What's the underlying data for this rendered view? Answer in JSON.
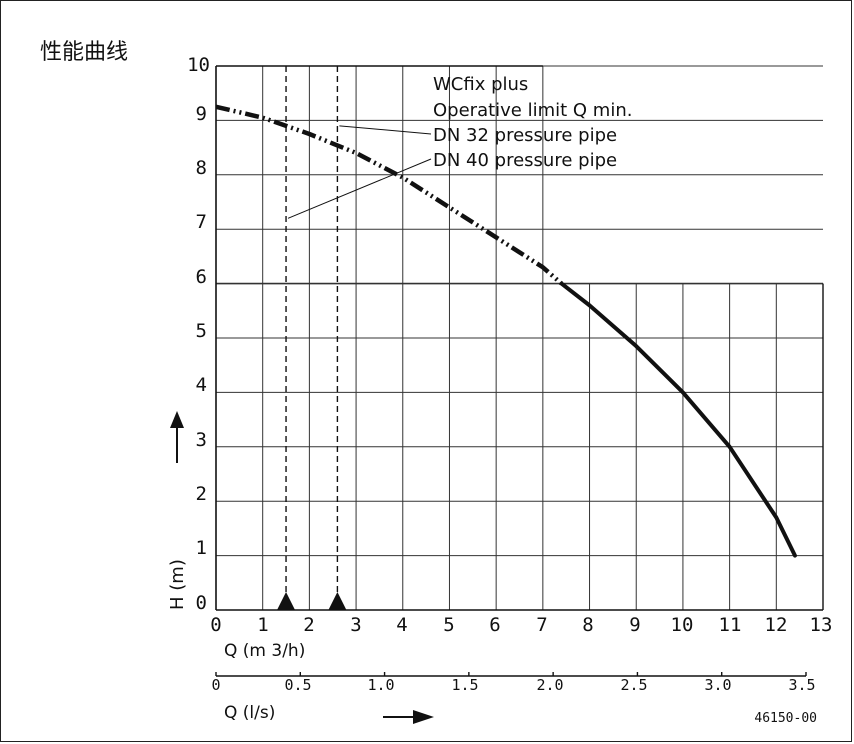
{
  "title": "性能曲线",
  "chart_data": {
    "type": "line",
    "title": "性能曲线",
    "ylabel": "H (m)",
    "xlabel": "Q (m 3/h)",
    "xlabel2": "Q (l/s)",
    "xlim": [
      0,
      13
    ],
    "ylim": [
      0,
      10
    ],
    "x2lim": [
      0,
      3.5
    ],
    "grid": true,
    "xticks": [
      "0",
      "1",
      "2",
      "3",
      "4",
      "5",
      "6",
      "7",
      "8",
      "9",
      "10",
      "11",
      "12",
      "13"
    ],
    "yticks": [
      "0",
      "1",
      "2",
      "3",
      "4",
      "5",
      "6",
      "7",
      "8",
      "9",
      "10"
    ],
    "x2ticks": [
      "0",
      "0.5",
      "1.0",
      "1.5",
      "2.0",
      "2.5",
      "3.0",
      "3.5"
    ],
    "series": [
      {
        "name": "WCfix plus",
        "x": [
          0,
          1,
          2,
          3,
          4,
          5,
          6,
          7,
          7.4,
          8,
          9,
          10,
          11,
          12,
          12.4
        ],
        "y": [
          9.25,
          9.05,
          8.75,
          8.4,
          7.95,
          7.4,
          6.85,
          6.3,
          6.0,
          5.6,
          4.85,
          4.0,
          3.0,
          1.7,
          1.0
        ],
        "dashed_until_x": 7.4
      }
    ],
    "markers": [
      {
        "name": "DN 32 pressure pipe",
        "x": 2.6
      },
      {
        "name": "DN 40 pressure pipe",
        "x": 1.5
      }
    ],
    "annotations": [
      "WCfix plus",
      "Operative limit Q min.",
      "DN 32 pressure pipe",
      "DN 40 pressure pipe"
    ],
    "code": "46150-00"
  }
}
